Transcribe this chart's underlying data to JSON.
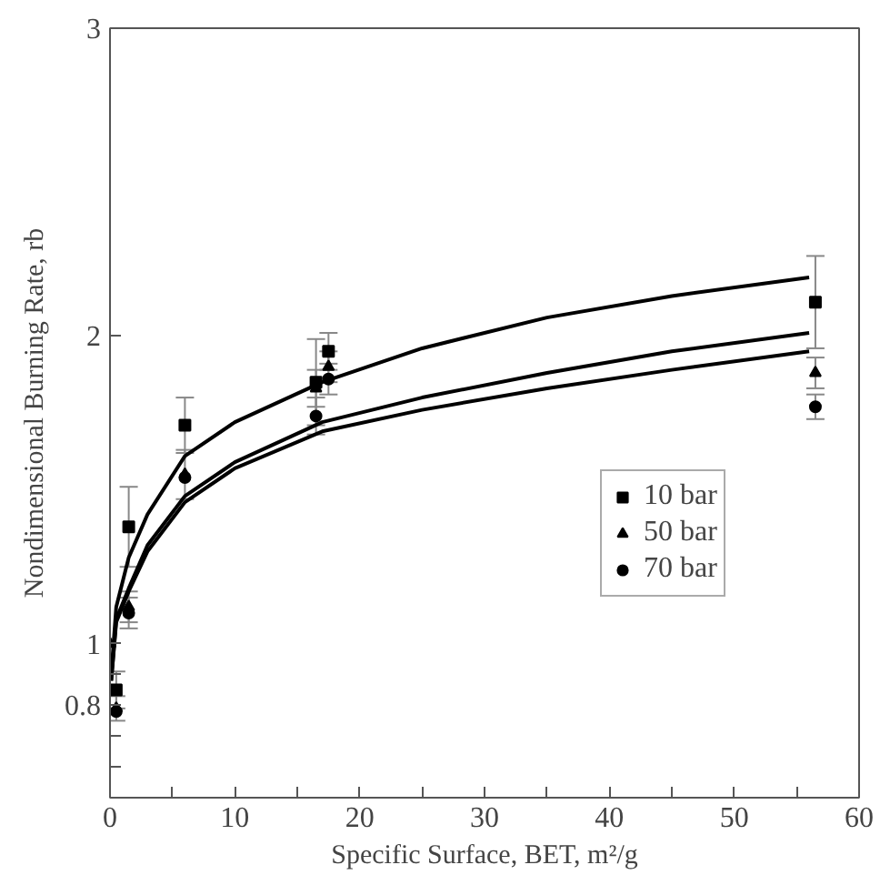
{
  "chart_data": {
    "type": "scatter",
    "xlabel": "Specific Surface, BET, m²/g",
    "ylabel": "Nondimensional Burning Rate, rb",
    "xlim": [
      0,
      60
    ],
    "xticks": [
      0,
      {
        "value": 5,
        "label": null
      },
      10,
      {
        "value": 15,
        "label": null
      },
      20,
      {
        "value": 25,
        "label": null
      },
      30,
      {
        "value": 35,
        "label": null
      },
      40,
      {
        "value": 45,
        "label": null
      },
      50,
      {
        "value": 55,
        "label": null
      },
      60
    ],
    "ylim": [
      0.5,
      3
    ],
    "yticks": [
      {
        "value": 0.6,
        "label": null
      },
      {
        "value": 0.7,
        "label": null
      },
      0.8,
      {
        "value": 0.9,
        "label": null
      },
      1,
      2,
      3
    ],
    "grid": false,
    "legend": "center",
    "series": [
      {
        "name": "10 bar",
        "color": "#000000",
        "marker": "square",
        "x": [
          0.5,
          1.5,
          6,
          16.5,
          17.5,
          56.5
        ],
        "values": [
          0.85,
          1.38,
          1.71,
          1.85,
          1.95,
          2.11
        ],
        "errors": [
          0.06,
          0.13,
          0.09,
          0.14,
          0.06,
          0.15
        ]
      },
      {
        "name": "50 bar",
        "color": "#000000",
        "marker": "triangle",
        "x": [
          0,
          0.5,
          1.5,
          6,
          16.5,
          17.5,
          56.5
        ],
        "values": [
          1.0,
          0.79,
          1.12,
          1.55,
          1.83,
          1.9,
          1.88
        ],
        "errors": [
          null,
          0.04,
          0.05,
          0.08,
          0.06,
          0.05,
          0.05
        ]
      },
      {
        "name": "70 bar",
        "color": "#000000",
        "marker": "circle",
        "x": [
          0.5,
          1.5,
          6,
          16.5,
          17.5,
          56.5
        ],
        "values": [
          0.78,
          1.1,
          1.54,
          1.74,
          1.86,
          1.77
        ],
        "errors": [
          null,
          0.05,
          null,
          0.06,
          0.05,
          0.04
        ]
      },
      {
        "type": "line",
        "color": "#000000",
        "x": [
          0.1,
          0.5,
          1.5,
          3,
          6,
          10,
          17,
          25,
          35,
          45,
          56
        ],
        "values": [
          0.9,
          1.12,
          1.28,
          1.42,
          1.61,
          1.72,
          1.85,
          1.96,
          2.06,
          2.13,
          2.19
        ]
      },
      {
        "type": "line",
        "color": "#000000",
        "x": [
          0.1,
          0.5,
          1.5,
          3,
          6,
          10,
          17,
          25,
          35,
          45,
          56
        ],
        "values": [
          0.88,
          1.08,
          1.18,
          1.32,
          1.48,
          1.59,
          1.72,
          1.8,
          1.88,
          1.95,
          2.01
        ]
      },
      {
        "type": "line",
        "color": "#000000",
        "x": [
          0.1,
          0.5,
          1.5,
          3,
          6,
          10,
          17,
          25,
          35,
          45,
          56
        ],
        "values": [
          0.88,
          1.07,
          1.17,
          1.3,
          1.46,
          1.57,
          1.69,
          1.76,
          1.83,
          1.89,
          1.95
        ]
      }
    ]
  }
}
